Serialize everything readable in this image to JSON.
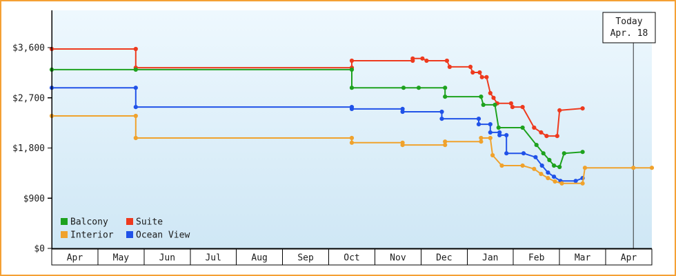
{
  "frame": {
    "border_color": "#f5a033",
    "background": "#ffffff"
  },
  "plot": {
    "bg_gradient_top": "#eef8fe",
    "bg_gradient_bottom": "#cfe7f5",
    "axis_color": "#000000"
  },
  "today_marker": {
    "line1": "Today",
    "line2": "Apr. 18",
    "month_x": 12.6
  },
  "legend": {
    "rows": [
      [
        {
          "label": "Balcony",
          "color": "#1ea21e"
        },
        {
          "label": "Suite",
          "color": "#ee3a1e"
        }
      ],
      [
        {
          "label": "Interior",
          "color": "#f0a22c"
        },
        {
          "label": "Ocean View",
          "color": "#2052e8"
        }
      ]
    ]
  },
  "chart_data": {
    "type": "line",
    "title": "",
    "x_axis": {
      "unit": "month",
      "tick_labels": [
        "Apr",
        "May",
        "Jun",
        "Jul",
        "Aug",
        "Sep",
        "Oct",
        "Nov",
        "Dec",
        "Jan",
        "Feb",
        "Mar",
        "Apr"
      ]
    },
    "y_axis": {
      "tick_labels": [
        "$0",
        "$900",
        "$1,800",
        "$2,700",
        "$3,600"
      ],
      "tick_values": [
        0,
        900,
        1800,
        2700,
        3600
      ],
      "range": [
        0,
        4270
      ]
    },
    "annotations": [
      {
        "type": "vline",
        "x_month": 12.6,
        "label": "Today Apr. 18"
      }
    ],
    "legend_position": "bottom-left-inside",
    "grid": false,
    "series": [
      {
        "name": "Suite",
        "color": "#ee3a1e",
        "points": [
          [
            0,
            3575
          ],
          [
            1.82,
            3575
          ],
          [
            1.82,
            3240
          ],
          [
            6.5,
            3240
          ],
          [
            6.5,
            3365
          ],
          [
            7.82,
            3365
          ],
          [
            7.82,
            3405
          ],
          [
            8.03,
            3405
          ],
          [
            8.12,
            3365
          ],
          [
            8.56,
            3365
          ],
          [
            8.62,
            3255
          ],
          [
            9.07,
            3255
          ],
          [
            9.12,
            3155
          ],
          [
            9.27,
            3155
          ],
          [
            9.32,
            3070
          ],
          [
            9.42,
            3070
          ],
          [
            9.5,
            2785
          ],
          [
            9.57,
            2700
          ],
          [
            9.65,
            2600
          ],
          [
            9.95,
            2600
          ],
          [
            9.98,
            2535
          ],
          [
            10.2,
            2535
          ],
          [
            10.45,
            2165
          ],
          [
            10.6,
            2080
          ],
          [
            10.72,
            2015
          ],
          [
            10.95,
            2015
          ],
          [
            11.0,
            2475
          ],
          [
            11.5,
            2510
          ]
        ]
      },
      {
        "name": "Balcony",
        "color": "#1ea21e",
        "points": [
          [
            0,
            3205
          ],
          [
            1.82,
            3205
          ],
          [
            6.5,
            3205
          ],
          [
            6.5,
            2880
          ],
          [
            7.62,
            2880
          ],
          [
            7.95,
            2880
          ],
          [
            8.52,
            2880
          ],
          [
            8.52,
            2720
          ],
          [
            9.3,
            2720
          ],
          [
            9.35,
            2575
          ],
          [
            9.6,
            2575
          ],
          [
            9.68,
            2165
          ],
          [
            10.2,
            2165
          ],
          [
            10.5,
            1855
          ],
          [
            10.65,
            1705
          ],
          [
            10.78,
            1585
          ],
          [
            10.88,
            1485
          ],
          [
            11.0,
            1460
          ],
          [
            11.1,
            1705
          ],
          [
            11.5,
            1730
          ]
        ]
      },
      {
        "name": "Ocean View",
        "color": "#2052e8",
        "points": [
          [
            0,
            2880
          ],
          [
            1.82,
            2880
          ],
          [
            1.82,
            2535
          ],
          [
            6.5,
            2535
          ],
          [
            6.5,
            2500
          ],
          [
            7.6,
            2500
          ],
          [
            7.6,
            2450
          ],
          [
            8.45,
            2450
          ],
          [
            8.45,
            2325
          ],
          [
            9.25,
            2325
          ],
          [
            9.25,
            2225
          ],
          [
            9.5,
            2225
          ],
          [
            9.5,
            2080
          ],
          [
            9.7,
            2080
          ],
          [
            9.7,
            2030
          ],
          [
            9.85,
            2030
          ],
          [
            9.85,
            1705
          ],
          [
            10.22,
            1705
          ],
          [
            10.48,
            1635
          ],
          [
            10.62,
            1485
          ],
          [
            10.75,
            1360
          ],
          [
            10.88,
            1285
          ],
          [
            11.02,
            1210
          ],
          [
            11.35,
            1210
          ],
          [
            11.5,
            1260
          ]
        ]
      },
      {
        "name": "Interior",
        "color": "#f0a22c",
        "points": [
          [
            0,
            2375
          ],
          [
            1.82,
            2375
          ],
          [
            1.82,
            1980
          ],
          [
            6.5,
            1980
          ],
          [
            6.5,
            1895
          ],
          [
            7.6,
            1895
          ],
          [
            7.6,
            1855
          ],
          [
            8.52,
            1855
          ],
          [
            8.52,
            1915
          ],
          [
            9.3,
            1915
          ],
          [
            9.3,
            1980
          ],
          [
            9.5,
            1980
          ],
          [
            9.55,
            1670
          ],
          [
            9.75,
            1485
          ],
          [
            10.2,
            1485
          ],
          [
            10.45,
            1425
          ],
          [
            10.6,
            1335
          ],
          [
            10.75,
            1260
          ],
          [
            10.9,
            1200
          ],
          [
            11.05,
            1165
          ],
          [
            11.5,
            1165
          ],
          [
            11.55,
            1445
          ],
          [
            12.6,
            1445
          ],
          [
            13,
            1445
          ]
        ]
      }
    ]
  }
}
